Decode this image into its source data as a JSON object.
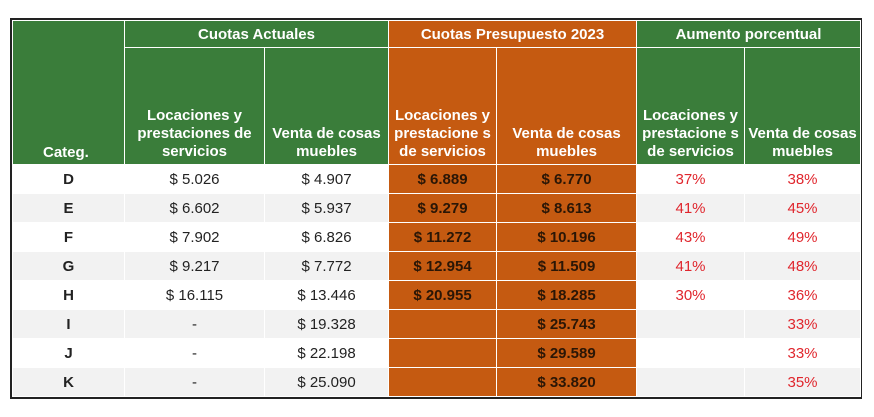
{
  "headers": {
    "categ": "Categ.",
    "group_actual": "Cuotas Actuales",
    "group_presupuesto": "Cuotas Presupuesto 2023",
    "group_aumento": "Aumento porcentual",
    "locaciones": "Locaciones y prestaciones de servicios",
    "venta_actual": "Venta de cosas muebles",
    "locaciones_presu": "Locaciones y prestacione s de servicios",
    "venta_presu": "Venta de cosas muebles",
    "locaciones_aum": "Locaciones y prestacione s de servicios",
    "venta_aum": "Venta de cosas muebles"
  },
  "colors": {
    "green": "#3a7d3a",
    "orange": "#c55a11",
    "red_text": "#e0262d"
  },
  "rows": [
    {
      "cat": "D",
      "loc_act": "$ 5.026",
      "venta_act": "$ 4.907",
      "loc_pre": "$ 6.889",
      "venta_pre": "$ 6.770",
      "loc_aum": "37%",
      "venta_aum": "38%"
    },
    {
      "cat": "E",
      "loc_act": "$ 6.602",
      "venta_act": "$ 5.937",
      "loc_pre": "$ 9.279",
      "venta_pre": "$ 8.613",
      "loc_aum": "41%",
      "venta_aum": "45%"
    },
    {
      "cat": "F",
      "loc_act": "$ 7.902",
      "venta_act": "$ 6.826",
      "loc_pre": "$ 11.272",
      "venta_pre": "$ 10.196",
      "loc_aum": "43%",
      "venta_aum": "49%"
    },
    {
      "cat": "G",
      "loc_act": "$ 9.217",
      "venta_act": "$ 7.772",
      "loc_pre": "$ 12.954",
      "venta_pre": "$ 11.509",
      "loc_aum": "41%",
      "venta_aum": "48%"
    },
    {
      "cat": "H",
      "loc_act": "$ 16.115",
      "venta_act": "$ 13.446",
      "loc_pre": "$ 20.955",
      "venta_pre": "$ 18.285",
      "loc_aum": "30%",
      "venta_aum": "36%"
    },
    {
      "cat": "I",
      "loc_act": "-",
      "venta_act": "$ 19.328",
      "loc_pre": "",
      "venta_pre": "$ 25.743",
      "loc_aum": "",
      "venta_aum": "33%"
    },
    {
      "cat": "J",
      "loc_act": "-",
      "venta_act": "$ 22.198",
      "loc_pre": "",
      "venta_pre": "$ 29.589",
      "loc_aum": "",
      "venta_aum": "33%"
    },
    {
      "cat": "K",
      "loc_act": "-",
      "venta_act": "$ 25.090",
      "loc_pre": "",
      "venta_pre": "$ 33.820",
      "loc_aum": "",
      "venta_aum": "35%"
    }
  ]
}
